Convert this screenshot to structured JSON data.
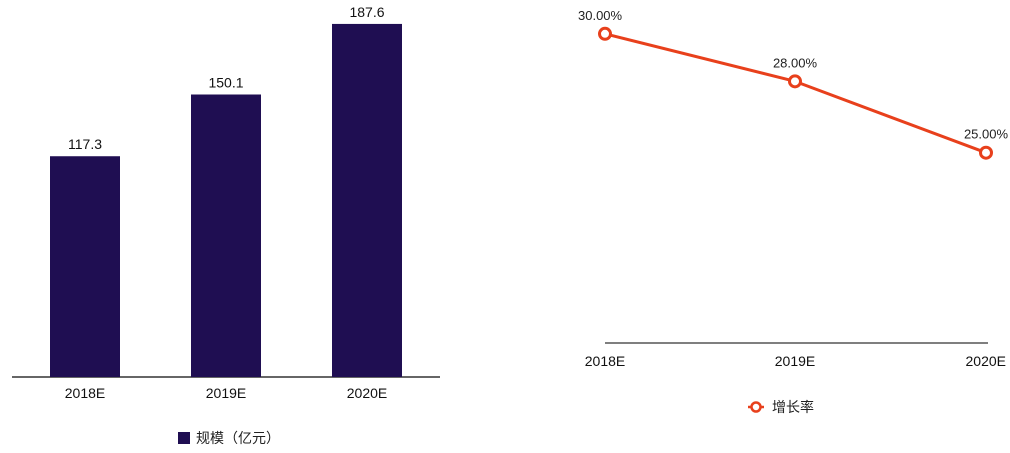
{
  "chart_data": [
    {
      "type": "bar",
      "categories": [
        "2018E",
        "2019E",
        "2020E"
      ],
      "series": [
        {
          "name": "规模（亿元）",
          "values": [
            117.3,
            150.1,
            187.6
          ],
          "color": "#1f0e52"
        }
      ],
      "data_labels": [
        "117.3",
        "150.1",
        "187.6"
      ],
      "ylim": [
        0,
        195
      ],
      "grid": false,
      "legend": "bottom"
    },
    {
      "type": "line",
      "categories": [
        "2018E",
        "2019E",
        "2020E"
      ],
      "series": [
        {
          "name": "增长率",
          "values": [
            30.0,
            28.0,
            25.0
          ],
          "color": "#e8401c"
        }
      ],
      "data_labels": [
        "30.00%",
        "28.00%",
        "25.00%"
      ],
      "ylim": [
        17,
        31
      ],
      "grid": false,
      "legend": "bottom"
    }
  ]
}
